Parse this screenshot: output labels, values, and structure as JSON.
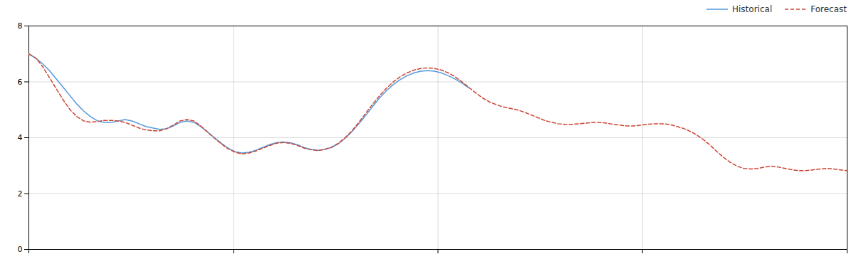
{
  "chart_data": {
    "type": "line",
    "x": [
      0,
      1,
      2,
      3,
      4,
      5,
      6,
      7,
      8,
      9,
      10,
      11,
      12,
      13,
      14,
      15,
      16,
      17,
      18,
      19,
      20,
      21,
      22,
      23,
      24,
      25,
      26,
      27,
      28,
      29,
      30,
      31,
      32,
      33,
      34,
      35,
      36,
      37,
      38,
      39,
      40,
      41,
      42,
      43,
      44,
      45,
      46,
      47,
      48,
      49,
      50,
      51,
      52,
      53,
      54,
      55,
      56,
      57,
      58,
      59,
      60,
      61,
      62,
      63,
      64,
      65,
      66,
      67,
      68,
      69,
      70,
      71,
      72,
      73,
      74,
      75,
      76,
      77,
      78,
      79,
      80,
      81,
      82,
      83,
      84,
      85,
      86,
      87,
      88,
      89,
      90,
      91,
      92,
      93,
      94,
      95,
      96,
      97,
      98,
      99,
      100,
      101,
      102,
      103,
      104,
      105,
      106,
      107,
      108,
      109,
      110,
      111,
      112,
      113,
      114,
      115,
      116,
      117,
      118,
      119
    ],
    "series": [
      {
        "name": "Historical",
        "color": "#5599dd",
        "line_style": "solid",
        "values": [
          7.0,
          6.85,
          6.65,
          6.4,
          6.1,
          5.8,
          5.5,
          5.2,
          4.95,
          4.75,
          4.6,
          4.55,
          4.55,
          4.6,
          4.65,
          4.6,
          4.5,
          4.4,
          4.35,
          4.3,
          4.32,
          4.42,
          4.55,
          4.6,
          4.55,
          4.4,
          4.2,
          4.0,
          3.8,
          3.62,
          3.5,
          3.45,
          3.48,
          3.55,
          3.65,
          3.75,
          3.82,
          3.85,
          3.82,
          3.75,
          3.65,
          3.58,
          3.55,
          3.58,
          3.65,
          3.78,
          3.98,
          4.22,
          4.5,
          4.8,
          5.12,
          5.42,
          5.68,
          5.9,
          6.08,
          6.22,
          6.32,
          6.38,
          6.4,
          6.38,
          6.32,
          6.22,
          6.1,
          5.95,
          5.78,
          null,
          null,
          null,
          null,
          null,
          null,
          null,
          null,
          null,
          null,
          null,
          null,
          null,
          null,
          null,
          null,
          null,
          null,
          null,
          null,
          null,
          null,
          null,
          null,
          null,
          null,
          null,
          null,
          null,
          null,
          null,
          null,
          null,
          null,
          null,
          null,
          null,
          null,
          null,
          null,
          null,
          null,
          null,
          null,
          null,
          null,
          null,
          null,
          null,
          null,
          null,
          null,
          null,
          null,
          null
        ]
      },
      {
        "name": "Forecast",
        "color": "#cc4433",
        "line_style": "dashed",
        "values": [
          7.0,
          6.85,
          6.55,
          6.15,
          5.75,
          5.35,
          5.0,
          4.75,
          4.6,
          4.55,
          4.58,
          4.62,
          4.62,
          4.6,
          4.55,
          4.45,
          4.35,
          4.28,
          4.25,
          4.25,
          4.32,
          4.45,
          4.6,
          4.65,
          4.6,
          4.42,
          4.2,
          3.98,
          3.78,
          3.6,
          3.48,
          3.42,
          3.45,
          3.52,
          3.62,
          3.72,
          3.8,
          3.83,
          3.8,
          3.73,
          3.63,
          3.57,
          3.54,
          3.58,
          3.66,
          3.8,
          4.0,
          4.25,
          4.55,
          4.88,
          5.2,
          5.5,
          5.77,
          6.0,
          6.18,
          6.32,
          6.42,
          6.48,
          6.5,
          6.48,
          6.42,
          6.32,
          6.18,
          6.0,
          5.8,
          5.6,
          5.42,
          5.28,
          5.18,
          5.1,
          5.05,
          5.0,
          4.92,
          4.82,
          4.72,
          4.62,
          4.55,
          4.5,
          4.48,
          4.48,
          4.5,
          4.52,
          4.55,
          4.55,
          4.52,
          4.48,
          4.45,
          4.42,
          4.42,
          4.45,
          4.48,
          4.5,
          4.5,
          4.48,
          4.42,
          4.35,
          4.25,
          4.12,
          3.95,
          3.75,
          3.52,
          3.3,
          3.12,
          2.98,
          2.9,
          2.88,
          2.9,
          2.95,
          2.98,
          2.95,
          2.9,
          2.85,
          2.82,
          2.82,
          2.85,
          2.88,
          2.9,
          2.88,
          2.85,
          2.82
        ]
      }
    ],
    "xlim": [
      0,
      119
    ],
    "xticks": [
      0,
      29.75,
      59.5,
      89.25,
      119
    ],
    "ylim": [
      0,
      8
    ],
    "yticks": [
      0,
      2,
      4,
      6,
      8
    ],
    "grid": true,
    "legend": "upper right",
    "tick_labels": "y"
  }
}
